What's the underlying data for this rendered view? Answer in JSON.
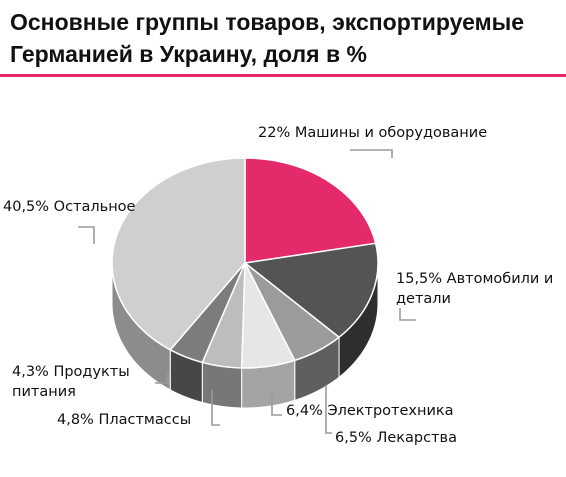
{
  "title_line1": "Основные группы товаров, экспортируемые",
  "title_line2": "Германией в Украину, доля в %",
  "accent_color": "#e42a6a",
  "labels": {
    "machines": "22% Машины и оборудование",
    "cars": "15,5% Автомобили и детали",
    "electro": "6,4% Электротехника",
    "medicine": "6,5% Лекарства",
    "plastics": "4,8% Пластмассы",
    "food": "4,3% Продукты питания",
    "other": "40,5% Остальное"
  },
  "chart_data": {
    "type": "pie",
    "title": "Основные группы товаров, экспортируемые Германией в Украину, доля в %",
    "slices": [
      {
        "name": "Машины и оборудование",
        "value": 22,
        "color": "#e42a6a",
        "side": "#a31e4c"
      },
      {
        "name": "Автомобили и детали",
        "value": 15.5,
        "color": "#545454",
        "side": "#2e2e2e"
      },
      {
        "name": "Электротехника",
        "value": 6.4,
        "color": "#9b9b9b",
        "side": "#5f5f5f"
      },
      {
        "name": "Лекарства",
        "value": 6.5,
        "color": "#e6e6e6",
        "side": "#a4a4a4"
      },
      {
        "name": "Пластмассы",
        "value": 4.8,
        "color": "#bdbdbd",
        "side": "#777777"
      },
      {
        "name": "Продукты питания",
        "value": 4.3,
        "color": "#7c7c7c",
        "side": "#474747"
      },
      {
        "name": "Остальное",
        "value": 40.5,
        "color": "#cfcfcf",
        "side": "#8c8c8c"
      }
    ]
  }
}
